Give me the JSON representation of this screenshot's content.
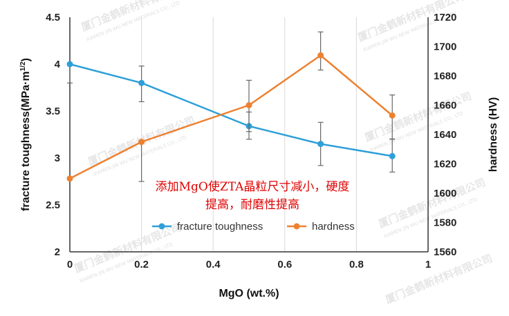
{
  "chart_data": {
    "type": "line",
    "xlabel": "MgO (wt.%)",
    "ylabel_left": "fracture toughness(MPa·m",
    "ylabel_left_exp": "1/2",
    "ylabel_left_close": ")",
    "ylabel_right": "hardness (HV)",
    "xlim": [
      0,
      1
    ],
    "ylim_left": [
      2,
      4.5
    ],
    "ylim_right": [
      1560,
      1720
    ],
    "x_ticks": [
      "0",
      "0.2",
      "0.4",
      "0.6",
      "0.8",
      "1"
    ],
    "y_left_ticks": [
      "2",
      "2.5",
      "3",
      "3.5",
      "4",
      "4.5"
    ],
    "y_right_ticks": [
      "1560",
      "1580",
      "1600",
      "1620",
      "1640",
      "1660",
      "1680",
      "1700",
      "1720"
    ],
    "grid": "vertical",
    "legend_position": "bottom-center",
    "series": [
      {
        "name": "fracture toughness",
        "axis": "left",
        "color": "#2e9fd8",
        "x": [
          0,
          0.2,
          0.5,
          0.7,
          0.9
        ],
        "y": [
          4.0,
          3.8,
          3.34,
          3.15,
          3.02
        ],
        "err_low": [
          3.8,
          3.6,
          3.2,
          2.92,
          2.85
        ],
        "err_high": [
          4.0,
          3.98,
          3.49,
          3.38,
          3.2
        ]
      },
      {
        "name": "hardness",
        "axis": "right",
        "color": "#ed8131",
        "x": [
          0,
          0.2,
          0.5,
          0.7,
          0.9
        ],
        "y": [
          1610,
          1635,
          1660,
          1694,
          1653
        ],
        "err_low": [
          1610,
          1608,
          1642,
          1684,
          1637
        ],
        "err_high": [
          1610,
          1636,
          1677,
          1710,
          1667
        ]
      }
    ],
    "annotation": [
      "添加MgO使ZTA晶粒尺寸减小，硬度",
      "提高，耐磨性提高"
    ]
  },
  "watermark": {
    "company_cn": "厦门金鹤新材料有限公司",
    "company_en": "XIAMEN JIN WU NEW MATERIALS CO., LTD"
  }
}
